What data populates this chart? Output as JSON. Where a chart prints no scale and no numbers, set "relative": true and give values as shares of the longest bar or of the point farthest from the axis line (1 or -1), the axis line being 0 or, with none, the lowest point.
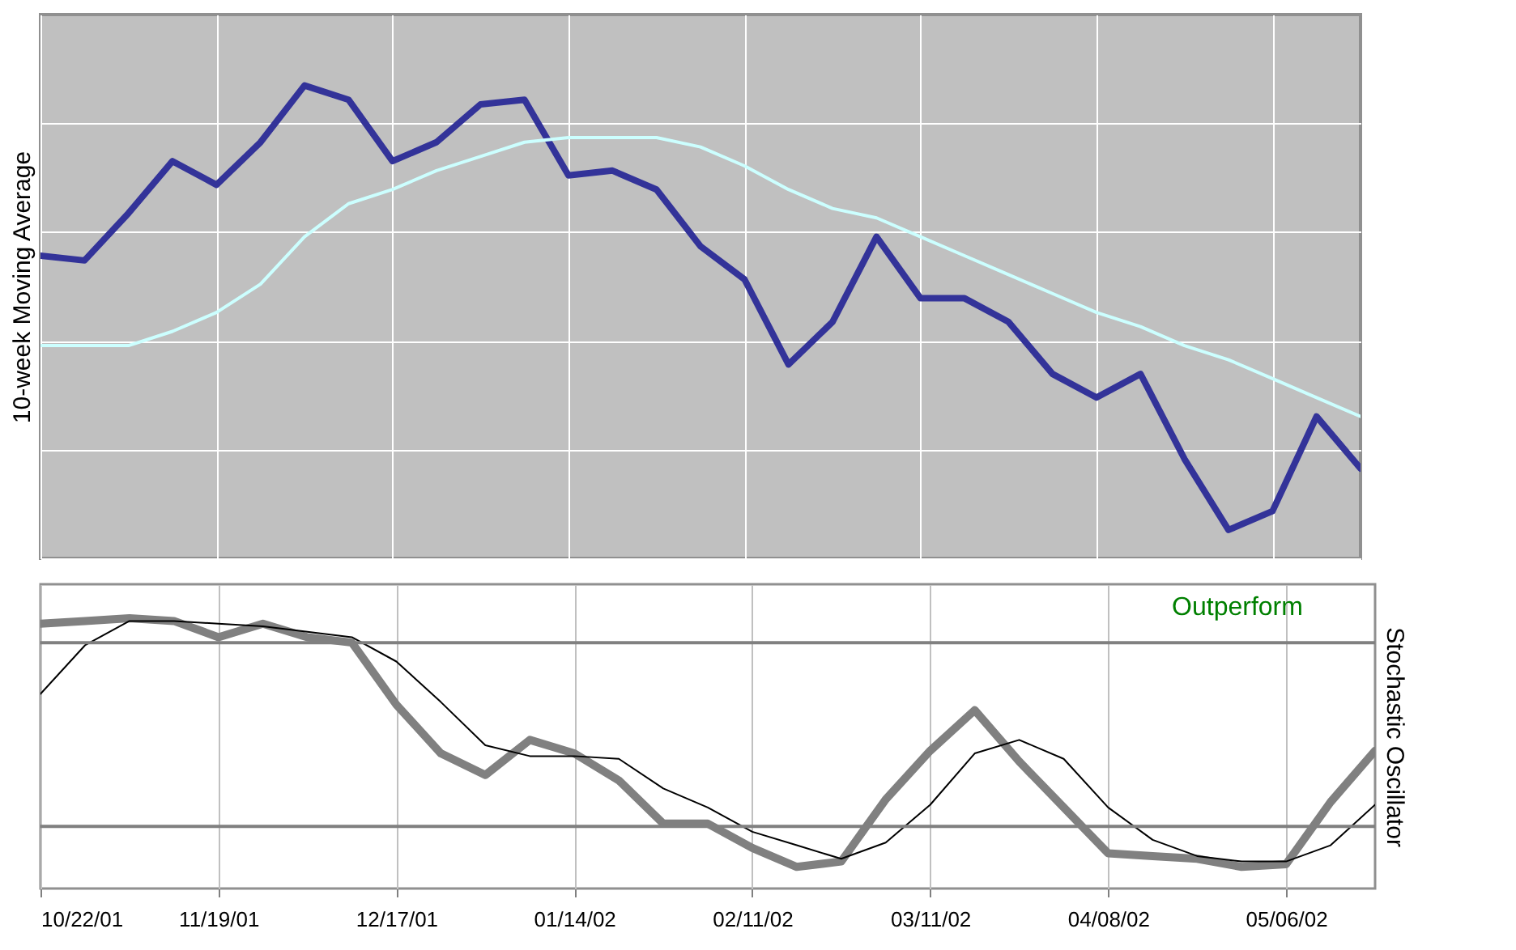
{
  "chart_data": [
    {
      "type": "line",
      "ylabel": "10-week Moving Average",
      "relative": true,
      "grid": true,
      "tick_labels": false,
      "marker": "none",
      "line_style": "solid",
      "categories": [
        null,
        null,
        null,
        null,
        null,
        null,
        null,
        null,
        null,
        null,
        null,
        null,
        null,
        null,
        null,
        null,
        null,
        null,
        null,
        null,
        null,
        null,
        null,
        null,
        null,
        null,
        null,
        null,
        null,
        null,
        null
      ],
      "series": [
        {
          "color": "#333399",
          "values": [
            0.64,
            0.63,
            0.73,
            0.84,
            0.79,
            0.88,
            1.0,
            0.97,
            0.84,
            0.88,
            0.96,
            0.97,
            0.81,
            0.82,
            0.78,
            0.66,
            0.59,
            0.41,
            0.5,
            0.68,
            0.55,
            0.55,
            0.5,
            0.39,
            0.34,
            0.39,
            0.21,
            0.06,
            0.1,
            0.3,
            0.19
          ]
        },
        {
          "color": "#ccffff",
          "values": [
            0.45,
            0.45,
            0.45,
            0.48,
            0.52,
            0.58,
            0.68,
            0.75,
            0.78,
            0.82,
            0.85,
            0.88,
            0.89,
            0.89,
            0.89,
            0.87,
            0.83,
            0.78,
            0.74,
            0.72,
            0.68,
            0.64,
            0.6,
            0.56,
            0.52,
            0.49,
            0.45,
            0.42,
            0.38,
            0.34,
            0.3
          ]
        }
      ]
    },
    {
      "type": "line",
      "ylabel": "Stochastic Oscillator",
      "relative": true,
      "grid": "x",
      "tick_labels": "x",
      "marker": "none",
      "line_style": "solid",
      "x": [
        "2001-10-22",
        "2001-10-29",
        "2001-11-05",
        "2001-11-12",
        "2001-11-19",
        "2001-11-26",
        "2001-12-03",
        "2001-12-10",
        "2001-12-17",
        "2001-12-24",
        "2001-12-31",
        "2002-01-07",
        "2002-01-14",
        "2002-01-21",
        "2002-01-28",
        "2002-02-04",
        "2002-02-11",
        "2002-02-18",
        "2002-02-25",
        "2002-03-04",
        "2002-03-11",
        "2002-03-18",
        "2002-03-25",
        "2002-04-01",
        "2002-04-08",
        "2002-04-15",
        "2002-04-22",
        "2002-04-29",
        "2002-05-06",
        "2002-05-13",
        "2002-05-20"
      ],
      "xlim": [
        "2001-10-22",
        "2002-05-20"
      ],
      "xticks": [
        {
          "value": "2001-10-22",
          "label": "10/22/01"
        },
        {
          "value": "2001-11-19",
          "label": "11/19/01"
        },
        {
          "value": "2001-12-17",
          "label": "12/17/01"
        },
        {
          "value": "2002-01-14",
          "label": "01/14/02"
        },
        {
          "value": "2002-02-11",
          "label": "02/11/02"
        },
        {
          "value": "2002-03-11",
          "label": "03/11/02"
        },
        {
          "value": "2002-04-08",
          "label": "04/08/02"
        },
        {
          "value": "2002-05-06",
          "label": "05/06/02"
        }
      ],
      "ref_lines": [
        {
          "axis": "y",
          "value": 0.91,
          "color": "#808080"
        },
        {
          "axis": "y",
          "value": 0.23,
          "color": "#808080"
        }
      ],
      "annotations": [
        "Outperform"
      ],
      "series": [
        {
          "color": "#808080",
          "values": [
            0.98,
            0.99,
            1.0,
            0.99,
            0.93,
            0.98,
            0.93,
            0.91,
            0.68,
            0.5,
            0.42,
            0.55,
            0.5,
            0.4,
            0.24,
            0.24,
            0.15,
            0.08,
            0.1,
            0.33,
            0.51,
            0.66,
            0.47,
            0.3,
            0.13,
            0.12,
            0.11,
            0.08,
            0.09,
            0.32,
            0.51
          ]
        },
        {
          "color": "#000000",
          "values": [
            0.72,
            0.9,
            0.99,
            0.99,
            0.98,
            0.97,
            0.95,
            0.93,
            0.84,
            0.69,
            0.53,
            0.49,
            0.49,
            0.48,
            0.37,
            0.3,
            0.21,
            0.16,
            0.11,
            0.17,
            0.31,
            0.5,
            0.55,
            0.48,
            0.3,
            0.18,
            0.12,
            0.1,
            0.1,
            0.16,
            0.31
          ]
        }
      ]
    }
  ]
}
